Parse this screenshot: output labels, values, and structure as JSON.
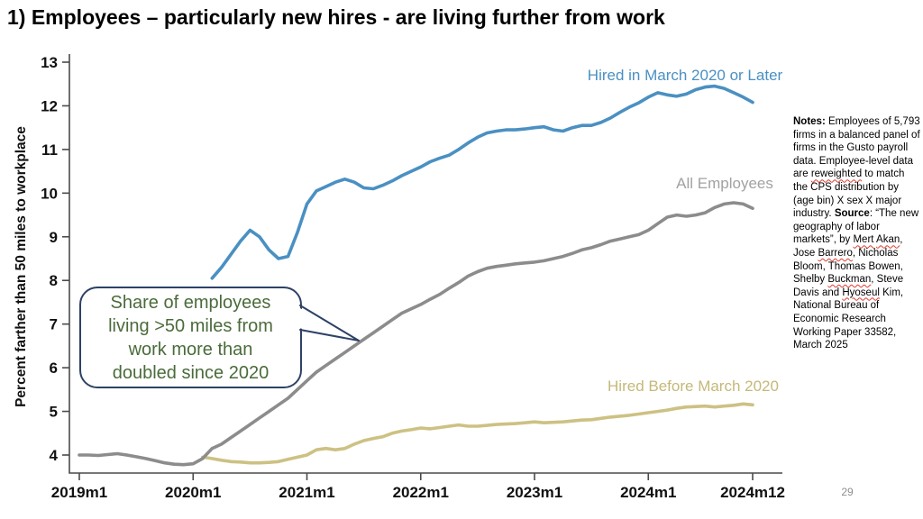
{
  "slide": {
    "title": "1) Employees – particularly new hires - are living further from work",
    "page_number": "29"
  },
  "chart_data": {
    "type": "line",
    "title": "",
    "xlabel": "",
    "ylabel": "Percent farther than 50 miles to workplace",
    "ylim": [
      4,
      13
    ],
    "y_ticks": [
      4,
      5,
      6,
      7,
      8,
      9,
      10,
      11,
      12,
      13
    ],
    "x_tick_labels": [
      "2019m1",
      "2020m1",
      "2021m1",
      "2022m1",
      "2023m1",
      "2024m1",
      "2024m12"
    ],
    "x_tick_months": [
      0,
      12,
      24,
      36,
      48,
      60,
      71
    ],
    "x_unit": "months since 2019m1",
    "grid": false,
    "legend_position": "inline-labels-near-lines",
    "series": [
      {
        "name": "Hired in March 2020 or Later",
        "color": "#4a90c2",
        "start_month": 14,
        "start_label": "2020m3",
        "values": [
          8.05,
          8.3,
          8.6,
          8.9,
          9.15,
          9.0,
          8.7,
          8.5,
          8.55,
          9.1,
          9.75,
          10.05,
          10.15,
          10.25,
          10.32,
          10.25,
          10.12,
          10.1,
          10.18,
          10.28,
          10.4,
          10.5,
          10.6,
          10.72,
          10.8,
          10.87,
          11.0,
          11.15,
          11.28,
          11.38,
          11.42,
          11.45,
          11.45,
          11.47,
          11.5,
          11.52,
          11.45,
          11.42,
          11.5,
          11.55,
          11.55,
          11.62,
          11.72,
          11.85,
          11.97,
          12.07,
          12.2,
          12.3,
          12.25,
          12.22,
          12.27,
          12.37,
          12.43,
          12.45,
          12.4,
          12.3,
          12.2,
          12.08
        ]
      },
      {
        "name": "All Employees",
        "color": "#8c8c8c",
        "start_month": 0,
        "start_label": "2019m1",
        "values": [
          4.0,
          4.0,
          3.99,
          4.01,
          4.03,
          4.0,
          3.96,
          3.92,
          3.87,
          3.82,
          3.79,
          3.78,
          3.8,
          3.92,
          4.15,
          4.25,
          4.4,
          4.55,
          4.7,
          4.85,
          5.0,
          5.15,
          5.3,
          5.5,
          5.7,
          5.9,
          6.05,
          6.2,
          6.35,
          6.5,
          6.65,
          6.8,
          6.95,
          7.1,
          7.25,
          7.35,
          7.45,
          7.57,
          7.68,
          7.82,
          7.95,
          8.1,
          8.2,
          8.28,
          8.32,
          8.35,
          8.38,
          8.4,
          8.42,
          8.45,
          8.5,
          8.55,
          8.62,
          8.7,
          8.75,
          8.82,
          8.9,
          8.95,
          9.0,
          9.05,
          9.15,
          9.3,
          9.45,
          9.5,
          9.47,
          9.5,
          9.55,
          9.67,
          9.75,
          9.78,
          9.75,
          9.65
        ]
      },
      {
        "name": "Hired Before March 2020",
        "color": "#cdc183",
        "start_month": 13,
        "start_label": "2020m2",
        "values": [
          3.95,
          3.92,
          3.88,
          3.85,
          3.84,
          3.82,
          3.82,
          3.83,
          3.85,
          3.9,
          3.95,
          4.0,
          4.12,
          4.15,
          4.12,
          4.15,
          4.25,
          4.33,
          4.38,
          4.42,
          4.5,
          4.55,
          4.58,
          4.62,
          4.6,
          4.63,
          4.66,
          4.69,
          4.66,
          4.66,
          4.68,
          4.7,
          4.71,
          4.72,
          4.74,
          4.76,
          4.74,
          4.75,
          4.76,
          4.78,
          4.8,
          4.81,
          4.84,
          4.87,
          4.89,
          4.91,
          4.94,
          4.97,
          5.0,
          5.03,
          5.07,
          5.1,
          5.11,
          5.12,
          5.1,
          5.12,
          5.14,
          5.17,
          5.15
        ]
      }
    ],
    "annotation": {
      "text": "Share of employees\nliving >50 miles from\nwork more than\ndoubled since 2020",
      "text_color": "#4a6b3a",
      "border_color": "#2d4265",
      "points_to_series": "All Employees",
      "points_to_month_label": "2021m6",
      "points_to_value": 6.5
    }
  },
  "notes_panel": {
    "segments": [
      {
        "text": "Notes:",
        "bold": true
      },
      {
        "text": " Employees of 5,793 firms in a balanced panel of firms in the Gusto payroll data. Employee-level data are "
      },
      {
        "text": "reweighted",
        "wavy": true
      },
      {
        "text": " to match the CPS distribution by (age bin) X sex X major industry. "
      },
      {
        "text": "Source",
        "bold": true
      },
      {
        "text": ": “The new geography of labor markets”, by "
      },
      {
        "text": "Mert",
        "wavy": true
      },
      {
        "text": " "
      },
      {
        "text": "Akan",
        "wavy": true
      },
      {
        "text": ", Jose "
      },
      {
        "text": "Barrero",
        "wavy": true
      },
      {
        "text": ", Nicholas Bloom, Thomas Bowen, Shelby "
      },
      {
        "text": "Buckman",
        "wavy": true
      },
      {
        "text": ", Steve Davis and "
      },
      {
        "text": "Hyoseul",
        "wavy": true
      },
      {
        "text": " Kim, National Bureau of Economic Research Working Paper 33582, March 2025"
      }
    ]
  }
}
